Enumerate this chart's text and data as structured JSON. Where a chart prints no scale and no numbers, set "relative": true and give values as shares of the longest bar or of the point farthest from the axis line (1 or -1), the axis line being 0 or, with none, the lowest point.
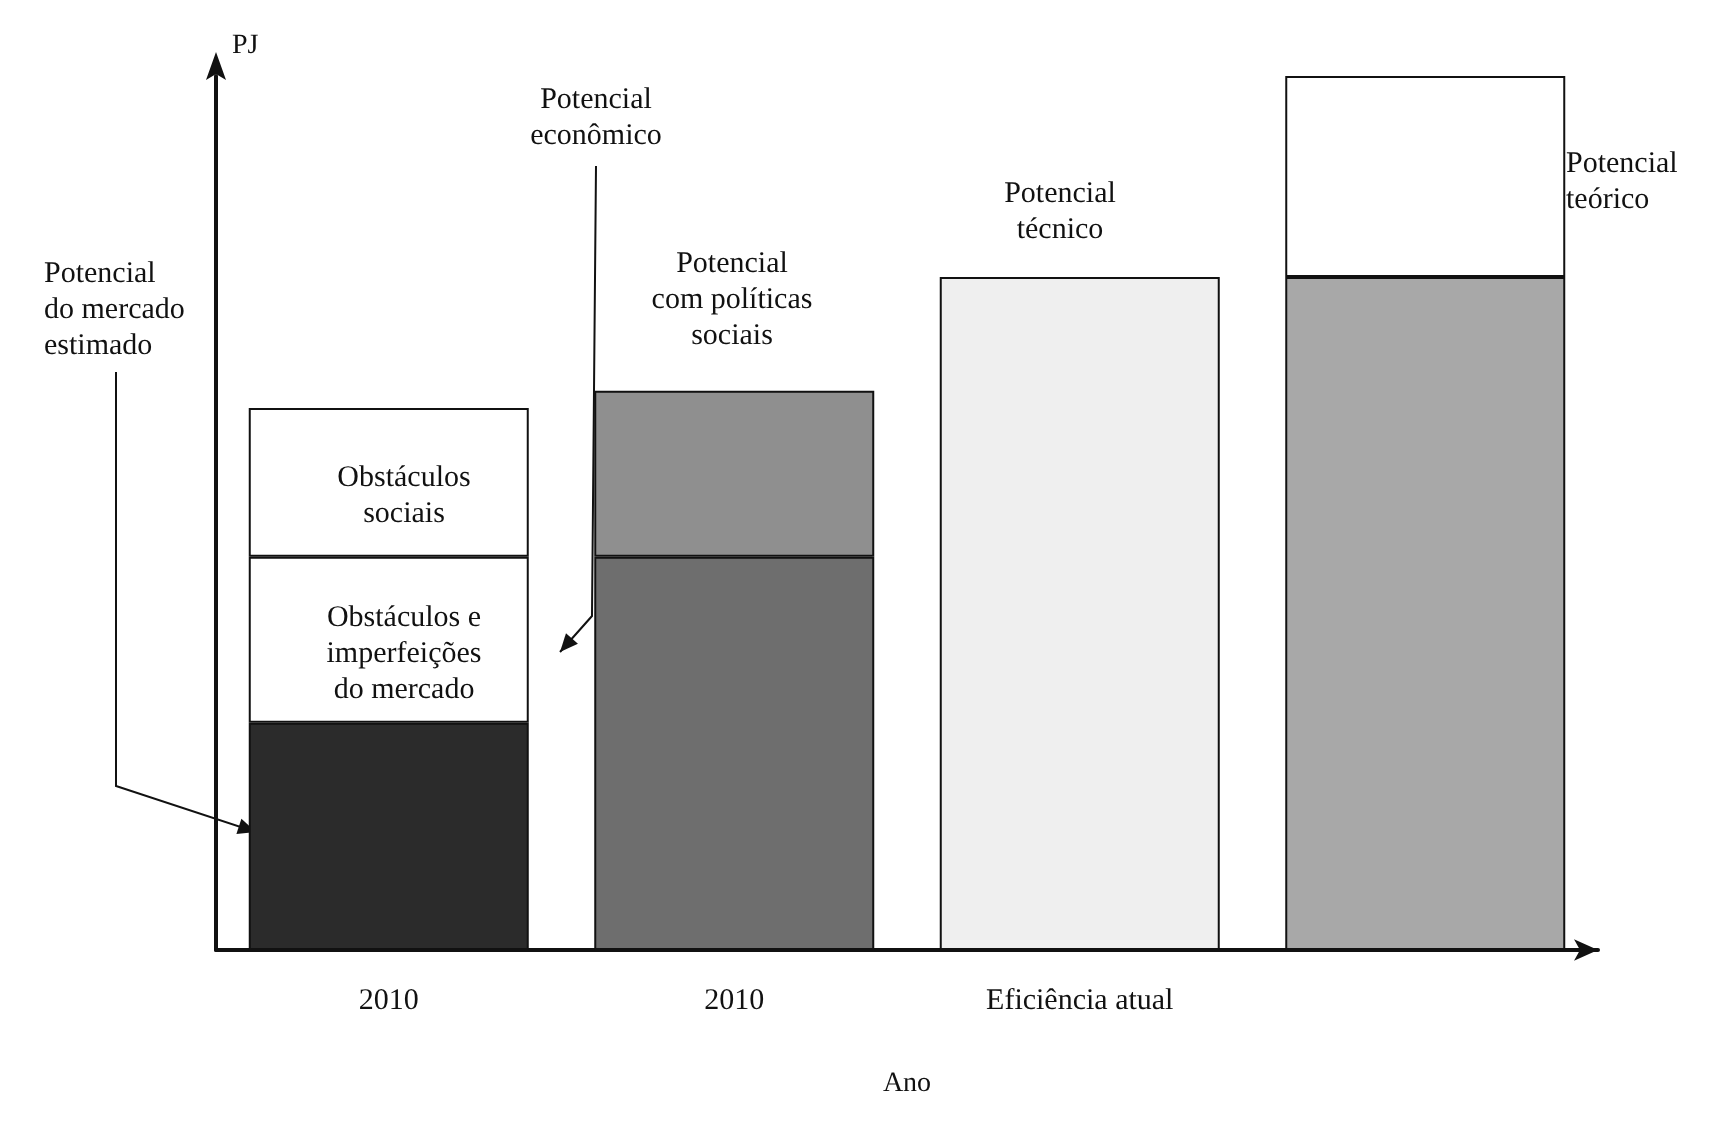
{
  "chart_data": {
    "type": "bar",
    "stacked": true,
    "relative": true,
    "xlabel": "Ano",
    "ylabel": "PJ",
    "categories": [
      "2010",
      "2010",
      "Eficiência atual",
      null
    ],
    "series": [
      {
        "values": [
          0.26,
          0.45,
          0.77,
          0.77
        ],
        "colors": [
          "#2b2b2b",
          "#6e6e6e",
          "#efefef",
          "#a8a8a8"
        ]
      },
      {
        "values": [
          0.19,
          0.19,
          null,
          0.23
        ],
        "colors": [
          "#ffffff",
          "#8f8f8f",
          "#ffffff",
          "#ffffff"
        ]
      },
      {
        "values": [
          0.17,
          null,
          null,
          null
        ],
        "colors": [
          "#ffffff",
          "#ffffff",
          "#ffffff",
          "#ffffff"
        ]
      }
    ],
    "annotations": [
      "Potencial\ndo mercado\nestimado",
      "Potencial\neconômico",
      "Potencial\ncom políticas\nsociais",
      "Potencial\ntécnico",
      "Potencial\nteórico",
      "Obstáculos\nsociais",
      "Obstáculos e\nimperfeições\ndo mercado"
    ]
  }
}
